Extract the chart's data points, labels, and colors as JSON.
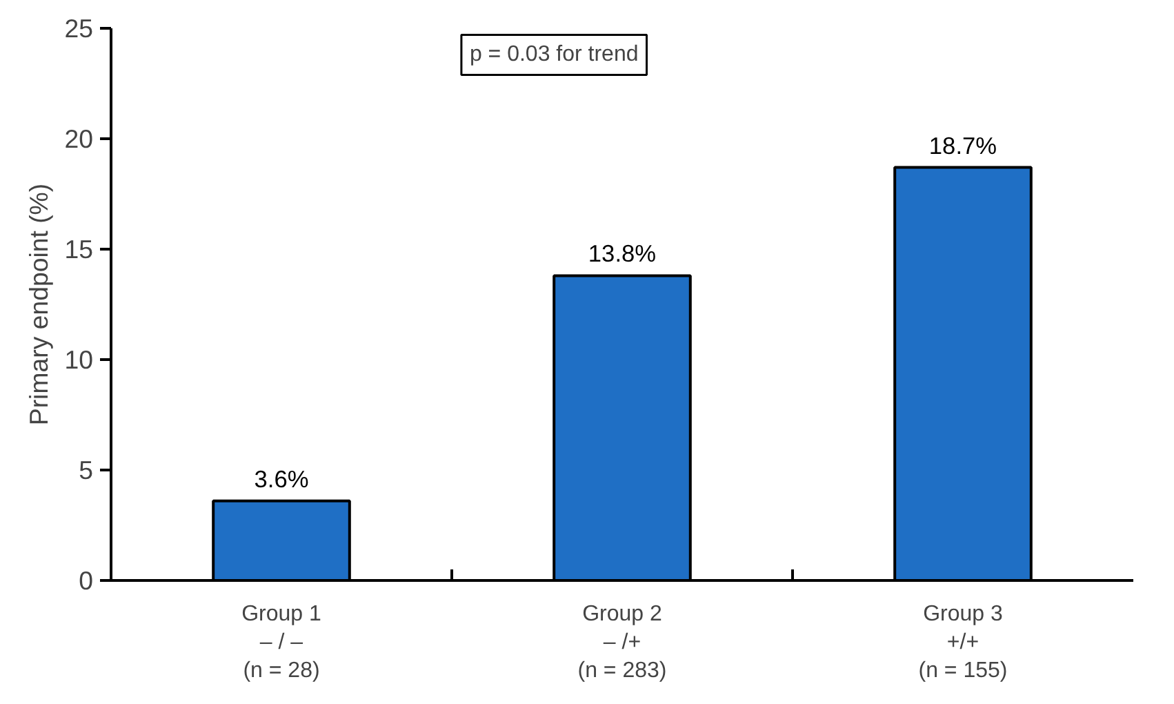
{
  "chart_data": {
    "type": "bar",
    "ylabel": "Primary endpoint (%)",
    "categories": [
      "Group 1\n– / –\n(n = 28)",
      "Group 2\n– /+\n(n = 283)",
      "Group 3\n+/+\n(n = 155)"
    ],
    "values": [
      3.6,
      13.8,
      18.7
    ],
    "color": "#1f6fc5",
    "value_labels": [
      "3.6%",
      "13.8%",
      "18.7%"
    ],
    "ylim": [
      0,
      25
    ],
    "yticks": [
      0,
      5,
      10,
      15,
      20,
      25
    ],
    "grid": false,
    "annotations": [
      "p = 0.03 for trend"
    ]
  }
}
